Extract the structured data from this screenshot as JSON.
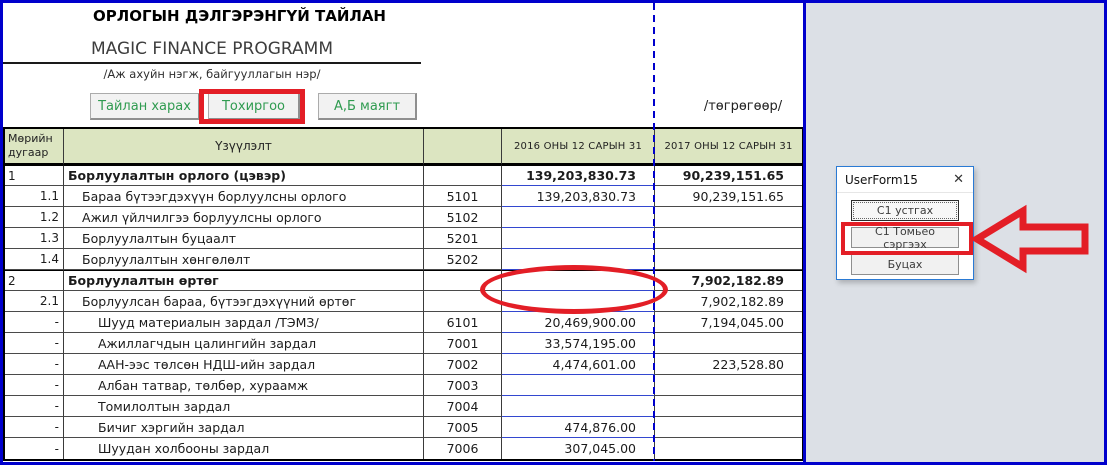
{
  "colors": {
    "annotation_red": "#e31e26",
    "pagebreak_blue": "#0000cc",
    "button_text_green": "#2f9b50",
    "table_header_green": "#dce5c1"
  },
  "header": {
    "title": "ОРЛОГЫН ДЭЛГЭРЭНГҮЙ ТАЙЛАН",
    "program_name": "MAGIC FINANCE PROGRAMM",
    "org_caption": "/Аж ахуйн нэгж, байгууллагын нэр/",
    "currency_caption": "/төгрөгөөр/"
  },
  "toolbar": {
    "buttons": [
      {
        "label": "Тайлан харах"
      },
      {
        "label": "Тохиргоо",
        "highlighted": true
      },
      {
        "label": "А,Б маягт"
      }
    ]
  },
  "table": {
    "headers": {
      "num": "Мөрийн дугаар",
      "indicator": "Үзүүлэлт",
      "code": "",
      "y2016": "2016 ОНЫ 12 САРЫН 31",
      "y2017": "2017 ОНЫ 12 САРЫН 31"
    },
    "rows": [
      {
        "num": "1",
        "label": "Борлуулалтын орлого (цэвэр)",
        "code": "",
        "v2016": "139,203,830.73",
        "v2017": "90,239,151.65",
        "bold": true,
        "group": true,
        "indent": 0
      },
      {
        "num": "1.1",
        "label": "Бараа бүтээгдэхүүн борлуулсны орлого",
        "code": "5101",
        "v2016": "139,203,830.73",
        "v2017": "90,239,151.65",
        "bold": false,
        "group": false,
        "indent": 1
      },
      {
        "num": "1.2",
        "label": "Ажил үйлчилгээ борлуулсны орлого",
        "code": "5102",
        "v2016": "",
        "v2017": "",
        "bold": false,
        "group": false,
        "indent": 1
      },
      {
        "num": "1.3",
        "label": "Борлуулалтын буцаалт",
        "code": "5201",
        "v2016": "",
        "v2017": "",
        "bold": false,
        "group": false,
        "indent": 1
      },
      {
        "num": "1.4",
        "label": "Борлуулалтын хөнгөлөлт",
        "code": "5202",
        "v2016": "",
        "v2017": "",
        "bold": false,
        "group": false,
        "indent": 1
      },
      {
        "num": "2",
        "label": "Борлуулалтын өртөг",
        "code": "",
        "v2016": "",
        "v2017": "7,902,182.89",
        "bold": true,
        "group": true,
        "indent": 0
      },
      {
        "num": "2.1",
        "label": "Борлуулсан бараа, бүтээгдэхүүний өртөг",
        "code": "",
        "v2016": "",
        "v2017": "7,902,182.89",
        "bold": false,
        "group": false,
        "indent": 1
      },
      {
        "num": "-",
        "label": "Шууд материалын зардал /ТЭМЗ/",
        "code": "6101",
        "v2016": "20,469,900.00",
        "v2017": "7,194,045.00",
        "bold": false,
        "group": false,
        "indent": 2
      },
      {
        "num": "-",
        "label": "Ажиллагчдын цалингийн зардал",
        "code": "7001",
        "v2016": "33,574,195.00",
        "v2017": "",
        "bold": false,
        "group": false,
        "indent": 2
      },
      {
        "num": "-",
        "label": "ААН-ээс төлсөн НДШ-ийн зардал",
        "code": "7002",
        "v2016": "4,474,601.00",
        "v2017": "223,528.80",
        "bold": false,
        "group": false,
        "indent": 2
      },
      {
        "num": "-",
        "label": "Албан татвар, төлбөр, хураамж",
        "code": "7003",
        "v2016": "",
        "v2017": "",
        "bold": false,
        "group": false,
        "indent": 2
      },
      {
        "num": "-",
        "label": "Томилолтын зардал",
        "code": "7004",
        "v2016": "",
        "v2017": "",
        "bold": false,
        "group": false,
        "indent": 2
      },
      {
        "num": "-",
        "label": "Бичиг хэргийн зардал",
        "code": "7005",
        "v2016": "474,876.00",
        "v2017": "",
        "bold": false,
        "group": false,
        "indent": 2
      },
      {
        "num": "-",
        "label": "Шуудан холбооны зардал",
        "code": "7006",
        "v2016": "307,045.00",
        "v2017": "",
        "bold": false,
        "group": false,
        "indent": 2
      }
    ]
  },
  "dialog": {
    "title": "UserForm15",
    "close_icon": "✕",
    "buttons": [
      {
        "label": "C1 устгах",
        "default": true
      },
      {
        "label": "C1 Томьео сэргээх",
        "highlighted": true
      },
      {
        "label": "Буцах"
      }
    ]
  }
}
